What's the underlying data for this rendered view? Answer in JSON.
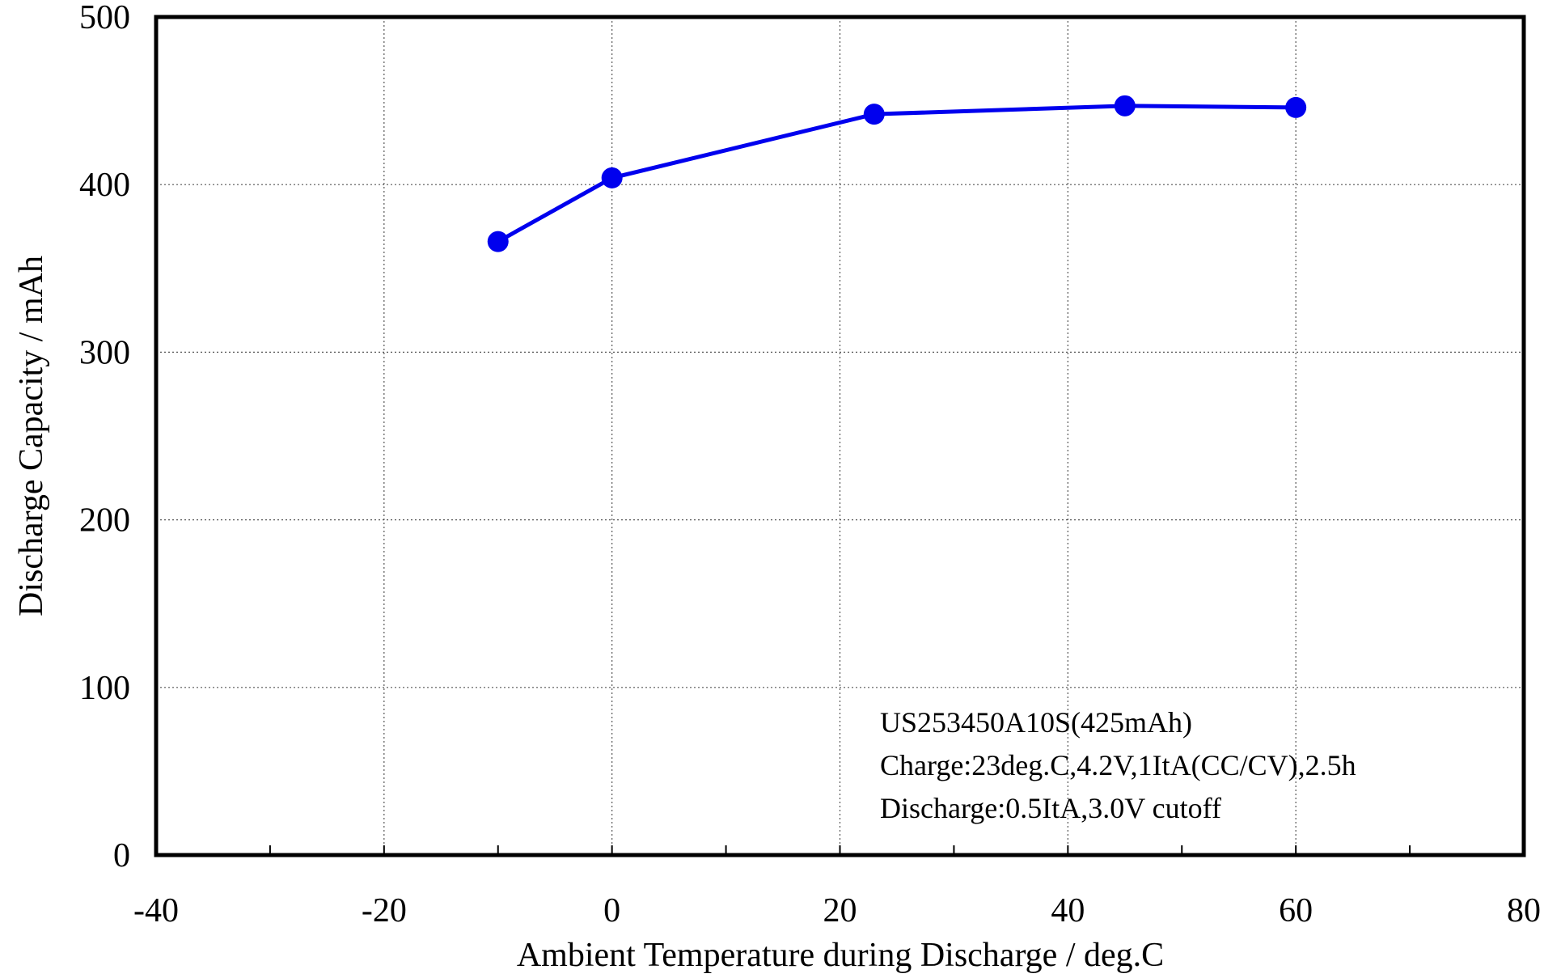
{
  "chart_data": {
    "type": "line",
    "xlabel": "Ambient Temperature during Discharge / deg.C",
    "ylabel": "Discharge Capacity / mAh",
    "xlim": [
      -40,
      80
    ],
    "ylim": [
      0,
      500
    ],
    "xticks": [
      -40,
      -20,
      0,
      20,
      40,
      60,
      80
    ],
    "yticks": [
      0,
      100,
      200,
      300,
      400,
      500
    ],
    "xtick_labels": [
      "-40",
      "-20",
      "0",
      "20",
      "40",
      "60",
      "80"
    ],
    "ytick_labels": [
      "0",
      "100",
      "200",
      "300",
      "400",
      "500"
    ],
    "grid": true,
    "series": [
      {
        "color": "#0000ee",
        "marker": "circle",
        "x": [
          -10,
          0,
          23,
          45,
          60
        ],
        "y": [
          366,
          404,
          442,
          447,
          446
        ]
      }
    ],
    "annotations": [
      "US253450A10S(425mAh)",
      "Charge:23deg.C,4.2V,1ItA(CC/CV),2.5h",
      "Discharge:0.5ItA,3.0V cutoff"
    ]
  }
}
